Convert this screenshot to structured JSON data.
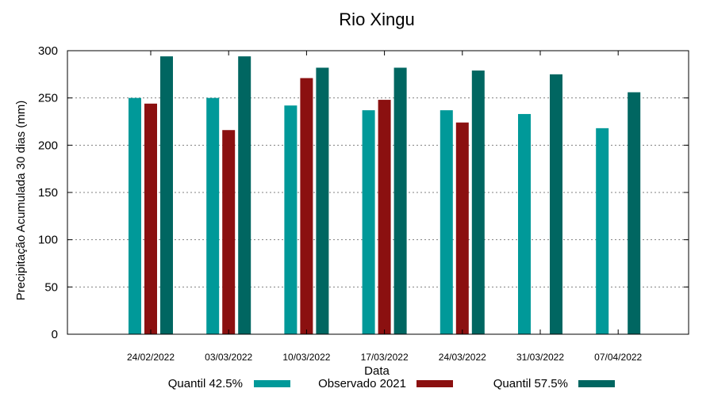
{
  "chart_data": {
    "type": "bar",
    "title": "Rio Xingu",
    "xlabel": "Data",
    "ylabel": "Precipitação Acumulada 30 dias (mm)",
    "ylim": [
      0,
      300
    ],
    "yticks": [
      0,
      50,
      100,
      150,
      200,
      250,
      300
    ],
    "grid": true,
    "legend_position": "bottom",
    "categories": [
      "24/02/2022",
      "03/03/2022",
      "10/03/2022",
      "17/03/2022",
      "24/03/2022",
      "31/03/2022",
      "07/04/2022"
    ],
    "series": [
      {
        "name": "Quantil 42.5%",
        "color": "#009999",
        "values": [
          250,
          250,
          242,
          237,
          237,
          233,
          218
        ]
      },
      {
        "name": "Observado 2021",
        "color": "#8b1010",
        "values": [
          244,
          216,
          271,
          248,
          224,
          null,
          null
        ]
      },
      {
        "name": "Quantil 57.5%",
        "color": "#006661",
        "values": [
          294,
          294,
          282,
          282,
          279,
          275,
          256
        ]
      }
    ]
  }
}
